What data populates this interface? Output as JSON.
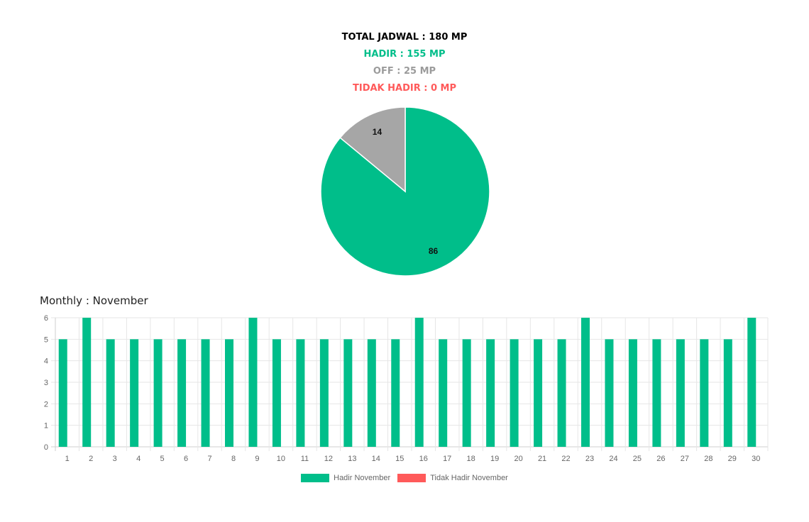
{
  "summary": {
    "total": "TOTAL JADWAL : 180 MP",
    "hadir": "HADIR : 155 MP",
    "off": "OFF : 25 MP",
    "tidak_hadir": "TIDAK HADIR : 0 MP"
  },
  "monthly_title": "Monthly : November",
  "colors": {
    "hadir": "#00be8a",
    "off": "#a6a6a6",
    "tidak_hadir": "#ff5a5a"
  },
  "chart_data": [
    {
      "type": "pie",
      "slices": [
        {
          "value": 86,
          "label": "86",
          "color": "#00be8a"
        },
        {
          "value": 14,
          "label": "14",
          "color": "#a6a6a6"
        }
      ]
    },
    {
      "type": "bar",
      "categories": [
        "1",
        "2",
        "3",
        "4",
        "5",
        "6",
        "7",
        "8",
        "9",
        "10",
        "11",
        "12",
        "13",
        "14",
        "15",
        "16",
        "17",
        "18",
        "19",
        "20",
        "21",
        "22",
        "23",
        "24",
        "25",
        "26",
        "27",
        "28",
        "29",
        "30"
      ],
      "series": [
        {
          "name": "Hadir November",
          "color": "#00be8a",
          "values": [
            5,
            6,
            5,
            5,
            5,
            5,
            5,
            5,
            6,
            5,
            5,
            5,
            5,
            5,
            5,
            6,
            5,
            5,
            5,
            5,
            5,
            5,
            6,
            5,
            5,
            5,
            5,
            5,
            5,
            6
          ]
        },
        {
          "name": "Tidak Hadir November",
          "color": "#ff5a5a",
          "values": [
            0,
            0,
            0,
            0,
            0,
            0,
            0,
            0,
            0,
            0,
            0,
            0,
            0,
            0,
            0,
            0,
            0,
            0,
            0,
            0,
            0,
            0,
            0,
            0,
            0,
            0,
            0,
            0,
            0,
            0
          ]
        }
      ],
      "ylim": [
        0,
        6
      ],
      "yticks": [
        0,
        1,
        2,
        3,
        4,
        5,
        6
      ],
      "grid": true,
      "legend": "bottom"
    }
  ]
}
